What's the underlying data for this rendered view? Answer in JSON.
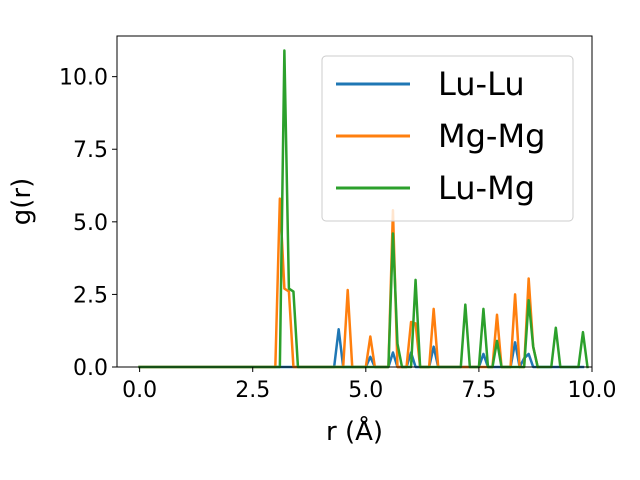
{
  "chart_data": {
    "type": "line",
    "title": "",
    "xlabel": "r (Å)",
    "ylabel": "g(r)",
    "xlim": [
      -0.5,
      10.0
    ],
    "ylim": [
      0.0,
      11.4
    ],
    "xticks": [
      0.0,
      2.5,
      5.0,
      7.5,
      10.0
    ],
    "xtick_labels": [
      "0.0",
      "2.5",
      "5.0",
      "7.5",
      "10.0"
    ],
    "yticks": [
      0.0,
      2.5,
      5.0,
      7.5,
      10.0
    ],
    "ytick_labels": [
      "0.0",
      "2.5",
      "5.0",
      "7.5",
      "10.0"
    ],
    "grid": false,
    "legend_position": "top-right",
    "series": [
      {
        "name": "Lu-Lu",
        "color": "#1f77b4",
        "x": [
          0.0,
          4.3,
          4.4,
          4.5,
          5.0,
          5.1,
          5.2,
          5.5,
          5.6,
          5.7,
          5.9,
          6.0,
          6.1,
          6.2,
          6.4,
          6.5,
          6.6,
          7.5,
          7.6,
          7.7,
          8.2,
          8.3,
          8.4,
          8.5,
          8.6,
          8.7,
          9.8
        ],
        "y": [
          0.0,
          0.0,
          1.3,
          0.0,
          0.0,
          0.35,
          0.0,
          0.0,
          0.5,
          0.0,
          0.0,
          0.5,
          0.0,
          0.0,
          0.0,
          0.7,
          0.0,
          0.0,
          0.45,
          0.0,
          0.0,
          0.85,
          0.0,
          0.3,
          0.45,
          0.0,
          0.0
        ]
      },
      {
        "name": "Mg-Mg",
        "color": "#ff7f0e",
        "x": [
          0.0,
          3.0,
          3.1,
          3.2,
          3.3,
          3.4,
          4.5,
          4.6,
          4.7,
          5.0,
          5.1,
          5.2,
          5.5,
          5.6,
          5.7,
          5.8,
          5.9,
          6.0,
          6.1,
          6.2,
          6.3,
          6.4,
          6.5,
          6.6,
          7.8,
          7.9,
          8.0,
          8.2,
          8.3,
          8.4,
          8.5,
          8.6,
          8.7,
          8.8
        ],
        "y": [
          0.0,
          0.0,
          5.8,
          2.7,
          2.6,
          0.0,
          0.0,
          2.65,
          0.0,
          0.0,
          1.05,
          0.0,
          0.0,
          5.4,
          0.0,
          0.0,
          0.0,
          1.55,
          1.5,
          0.0,
          0.0,
          0.0,
          2.0,
          0.0,
          0.0,
          1.8,
          0.0,
          0.0,
          2.5,
          0.0,
          0.0,
          3.05,
          0.7,
          0.0
        ]
      },
      {
        "name": "Lu-Mg",
        "color": "#2ca02c",
        "x": [
          0.0,
          3.1,
          3.2,
          3.3,
          3.4,
          3.5,
          5.5,
          5.6,
          5.7,
          5.8,
          6.0,
          6.1,
          6.2,
          7.1,
          7.2,
          7.3,
          7.5,
          7.6,
          7.7,
          7.8,
          7.9,
          8.0,
          8.1,
          8.5,
          8.6,
          8.7,
          8.8,
          9.1,
          9.2,
          9.3,
          9.7,
          9.8,
          9.9
        ],
        "y": [
          0.0,
          0.0,
          10.9,
          2.7,
          2.6,
          0.0,
          0.0,
          4.6,
          0.8,
          0.0,
          0.0,
          3.0,
          0.0,
          0.0,
          2.15,
          0.0,
          0.0,
          2.0,
          0.0,
          0.0,
          0.9,
          0.0,
          0.0,
          0.0,
          2.3,
          0.7,
          0.0,
          0.0,
          1.35,
          0.0,
          0.0,
          1.2,
          0.0
        ]
      }
    ]
  }
}
